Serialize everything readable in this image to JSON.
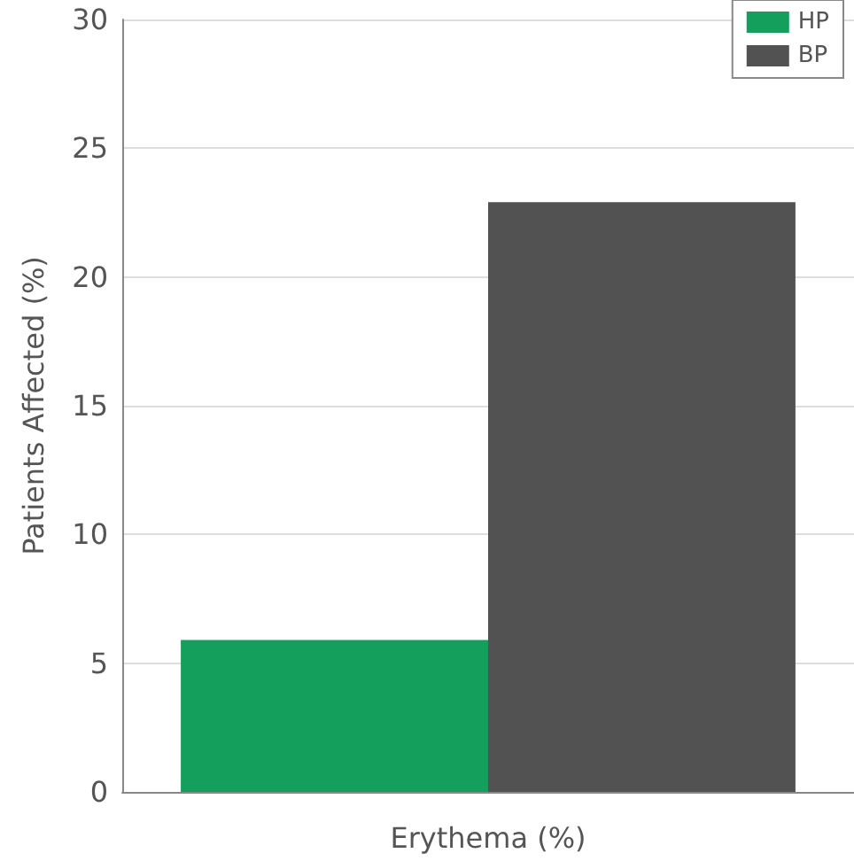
{
  "chart_data": {
    "type": "bar",
    "categories": [
      null
    ],
    "xlabel": "Erythema (%)",
    "ylabel": "Patients Affected (%)",
    "series": [
      {
        "name": "HP",
        "color": "#159f5c",
        "values": [
          5.9
        ]
      },
      {
        "name": "BP",
        "color": "#525252",
        "values": [
          22.9
        ]
      }
    ],
    "ylim": [
      0,
      30
    ],
    "yticks": [
      0,
      5,
      10,
      15,
      20,
      25,
      30
    ],
    "grid": "y",
    "legend": "top right"
  }
}
